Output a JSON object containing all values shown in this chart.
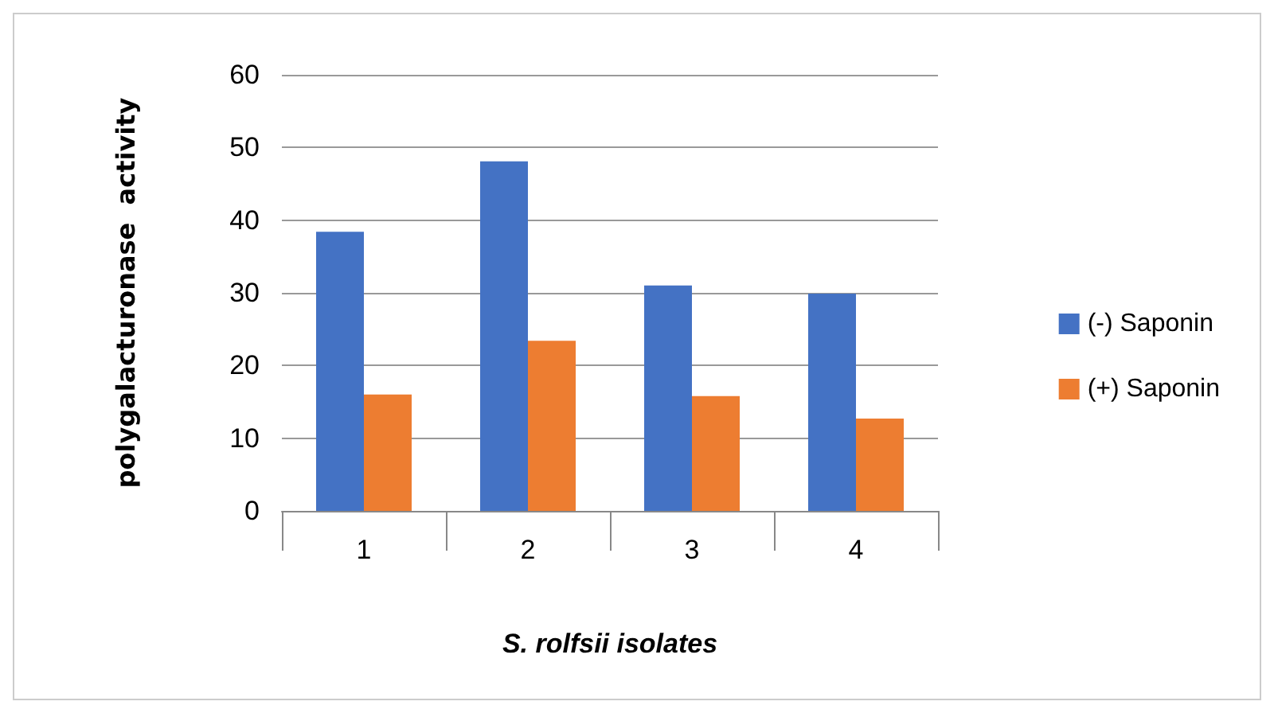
{
  "chart_data": {
    "type": "bar",
    "xlabel": "S. rolfsii isolates",
    "ylabel": "polygalacturonase  activity",
    "categories": [
      "1",
      "2",
      "3",
      "4"
    ],
    "series": [
      {
        "name": "(-) Saponin",
        "color": "#4472c4",
        "values": [
          38.4,
          48.1,
          31.0,
          29.9
        ]
      },
      {
        "name": "(+) Saponin",
        "color": "#ed7d31",
        "values": [
          16.0,
          23.4,
          15.8,
          12.7
        ]
      }
    ],
    "ylim": [
      0,
      60
    ],
    "yticks": [
      0,
      10,
      20,
      30,
      40,
      50,
      60
    ],
    "grid": "y",
    "legend": "right"
  }
}
